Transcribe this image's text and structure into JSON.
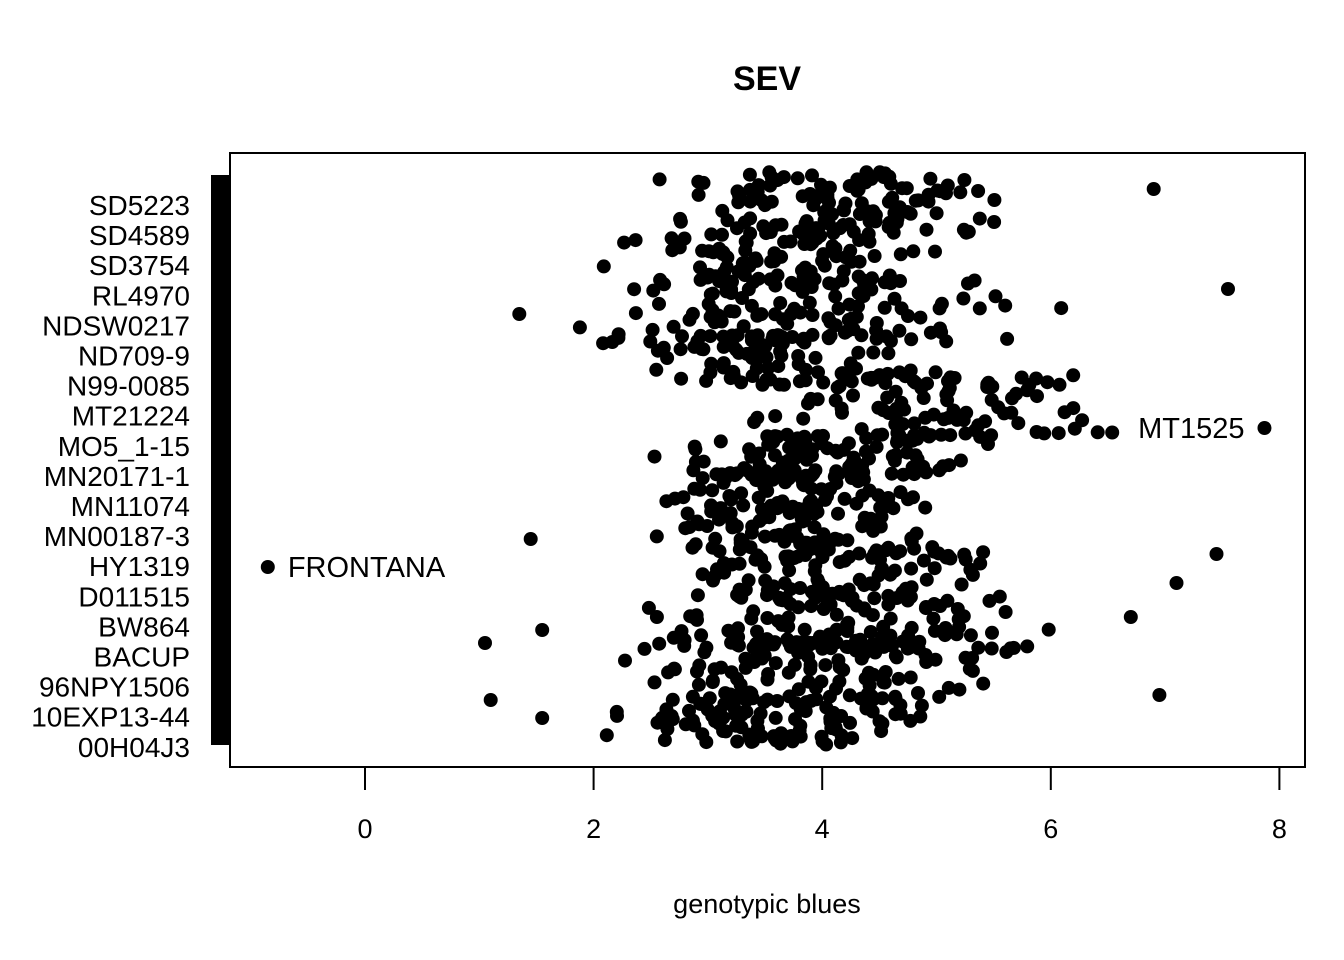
{
  "chart_data": {
    "type": "scatter",
    "title": "SEV",
    "xlabel": "genotypic blues",
    "ylabel": "",
    "xlim": [
      -1.2,
      8.2
    ],
    "x_ticks": [
      "0",
      "2",
      "4",
      "6",
      "8"
    ],
    "x_tick_values": [
      0,
      2,
      4,
      6,
      8
    ],
    "y_labels": [
      "SD5223",
      "SD4589",
      "SD3754",
      "RL4970",
      "NDSW0217",
      "ND709-9",
      "N99-0085",
      "MT21224",
      "MO5_1-15",
      "MN20171-1",
      "MN11074",
      "MN00187-3",
      "HY1319",
      "D011515",
      "BW864",
      "BACUP",
      "96NPY1506",
      "10EXP13-44",
      "00H04J3"
    ],
    "grid": false,
    "point_color": "#000000",
    "point_count_note": "",
    "highlighted_points": [
      {
        "label": "FRONTANA",
        "x": -0.85,
        "y": 567
      },
      {
        "label": "MT1525",
        "x": 7.87,
        "y": 428
      }
    ],
    "point_density": [
      {
        "x_range": [
          2.1,
          6.2
        ],
        "y_band": [
          172,
          232
        ],
        "n": 120
      },
      {
        "x_range": [
          1.9,
          5.4
        ],
        "y_band": [
          232,
          292
        ],
        "n": 100
      },
      {
        "x_range": [
          1.5,
          6.4
        ],
        "y_band": [
          280,
          345
        ],
        "n": 100
      },
      {
        "x_range": [
          1.6,
          5.4
        ],
        "y_band": [
          335,
          385
        ],
        "n": 90
      },
      {
        "x_range": [
          2.7,
          7.3
        ],
        "y_band": [
          375,
          445
        ],
        "n": 100
      },
      {
        "x_range": [
          2.2,
          5.7
        ],
        "y_band": [
          435,
          475
        ],
        "n": 90
      },
      {
        "x_range": [
          1.9,
          5.3
        ],
        "y_band": [
          470,
          545
        ],
        "n": 140
      },
      {
        "x_range": [
          2.2,
          6.0
        ],
        "y_band": [
          540,
          600
        ],
        "n": 110
      },
      {
        "x_range": [
          1.8,
          6.8
        ],
        "y_band": [
          595,
          650
        ],
        "n": 110
      },
      {
        "x_range": [
          1.9,
          6.0
        ],
        "y_band": [
          640,
          700
        ],
        "n": 110
      },
      {
        "x_range": [
          1.5,
          5.7
        ],
        "y_band": [
          695,
          745
        ],
        "n": 110
      }
    ],
    "outliers": [
      {
        "x": 6.9,
        "y": 189
      },
      {
        "x": 7.55,
        "y": 289
      },
      {
        "x": 7.45,
        "y": 554
      },
      {
        "x": 7.1,
        "y": 583
      },
      {
        "x": 6.95,
        "y": 695
      },
      {
        "x": 6.7,
        "y": 617
      },
      {
        "x": 1.05,
        "y": 643
      },
      {
        "x": 1.1,
        "y": 700
      },
      {
        "x": 1.35,
        "y": 314
      },
      {
        "x": 1.45,
        "y": 539
      },
      {
        "x": 1.55,
        "y": 630
      },
      {
        "x": 1.55,
        "y": 718
      }
    ]
  }
}
